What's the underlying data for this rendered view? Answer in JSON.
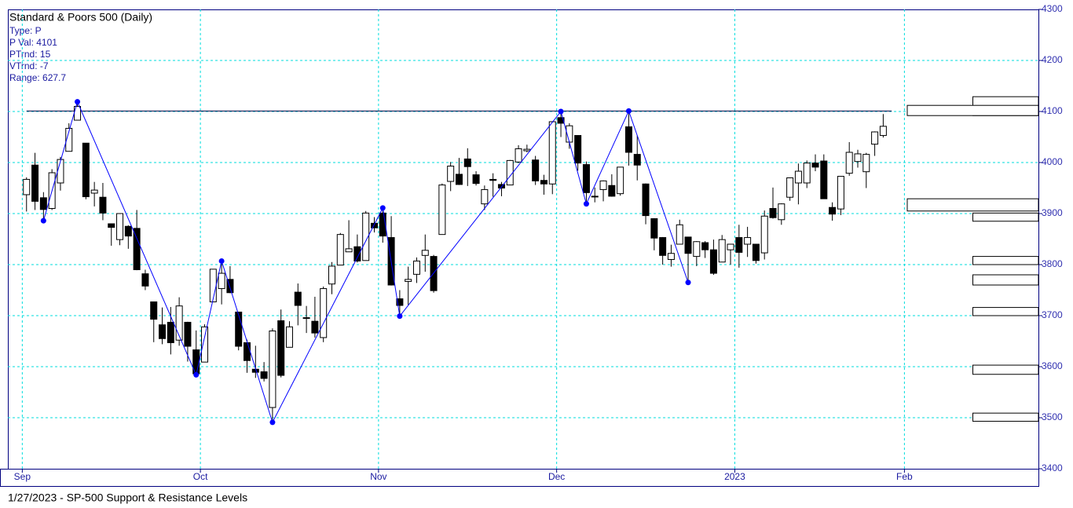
{
  "chart_data": {
    "type": "candlestick",
    "title": "Standard & Poors 500 (Daily)",
    "info": [
      "Type: P",
      {
        "value": 4101,
        "label": "P Val: 4101"
      },
      "PTrnd: 15",
      "VTrnd: -7",
      "Range: 627.7"
    ],
    "footer": "1/27/2023 - SP-500  Support & Resistance Levels",
    "x": [
      0,
      1,
      2,
      3,
      4,
      5,
      6,
      7,
      8,
      9,
      10,
      11,
      12,
      13,
      14,
      15,
      16,
      17,
      18,
      19,
      20,
      21,
      22,
      23,
      24,
      25,
      26,
      27,
      28,
      29,
      30,
      31,
      32,
      33,
      34,
      35,
      36,
      37,
      38,
      39,
      40,
      41,
      42,
      43,
      44,
      45,
      46,
      47,
      48,
      49,
      50,
      51,
      52,
      53,
      54,
      55,
      56,
      57,
      58,
      59,
      60,
      61,
      62,
      63,
      64,
      65,
      66,
      67,
      68,
      69,
      70,
      71,
      72,
      73,
      74,
      75,
      76,
      77,
      78,
      79,
      80,
      81,
      82,
      83,
      84,
      85,
      86,
      87,
      88,
      89,
      90,
      91,
      92,
      93,
      94,
      95,
      96,
      97,
      98,
      99,
      100,
      101
    ],
    "open": [
      3937,
      3995,
      3931,
      3910,
      3960,
      4022,
      4083,
      4038,
      3940,
      3932,
      3880,
      3849,
      3875,
      3871,
      3782,
      3727,
      3682,
      3687,
      3652,
      3687,
      3633,
      3609,
      3727,
      3753,
      3771,
      3707,
      3647,
      3595,
      3590,
      3520,
      3690,
      3638,
      3746,
      3696,
      3689,
      3657,
      3762,
      3799,
      3825,
      3835,
      3808,
      3881,
      3901,
      3853,
      3733,
      3767,
      3781,
      3818,
      3816,
      3859,
      3963,
      3977,
      4007,
      3976,
      3919,
      3967,
      3957,
      3956,
      4001,
      4023,
      4005,
      3965,
      3958,
      4088,
      4040,
      4053,
      3996,
      3933,
      3947,
      3955,
      3939,
      4070,
      4016,
      3958,
      3890,
      3853,
      3810,
      3840,
      3854,
      3816,
      3843,
      3829,
      3805,
      3829,
      3853,
      3840,
      3840,
      3823,
      3910,
      3888,
      3932,
      3960,
      3960,
      3999,
      4003,
      3912,
      3909,
      3979,
      4002,
      3982,
      4036,
      4053
    ],
    "high": [
      3971,
      4019,
      3942,
      3987,
      4011,
      4077,
      4119,
      4038,
      3962,
      3960,
      3880,
      3900,
      3877,
      3907,
      3790,
      3727,
      3716,
      3717,
      3736,
      3688,
      3671,
      3683,
      3791,
      3807,
      3797,
      3707,
      3653,
      3641,
      3609,
      3675,
      3712,
      3689,
      3763,
      3719,
      3737,
      3757,
      3805,
      3862,
      3887,
      3859,
      3905,
      3893,
      3911,
      3895,
      3750,
      3796,
      3814,
      3859,
      3819,
      3959,
      4001,
      4009,
      4028,
      3983,
      3955,
      3979,
      3962,
      4005,
      4034,
      4035,
      4013,
      3976,
      4081,
      4100,
      4077,
      4053,
      4002,
      3951,
      3965,
      3977,
      3991,
      4101,
      4053,
      3959,
      3891,
      3854,
      3839,
      3888,
      3854,
      3846,
      3846,
      3849,
      3858,
      3840,
      3878,
      3874,
      3840,
      3906,
      3951,
      3920,
      3970,
      3998,
      4004,
      4016,
      4016,
      3922,
      3973,
      4040,
      4025,
      4019,
      4061,
      4095
    ],
    "low": [
      3904,
      3907,
      3886,
      3907,
      3945,
      4022,
      4083,
      3928,
      3914,
      3887,
      3837,
      3838,
      3831,
      3789,
      3750,
      3648,
      3644,
      3624,
      3641,
      3610,
      3584,
      3609,
      3727,
      3722,
      3744,
      3632,
      3588,
      3578,
      3571,
      3491,
      3579,
      3638,
      3681,
      3666,
      3657,
      3648,
      3742,
      3799,
      3825,
      3804,
      3808,
      3863,
      3843,
      3759,
      3699,
      3721,
      3764,
      3786,
      3745,
      3859,
      3944,
      3956,
      3954,
      3955,
      3907,
      3933,
      3934,
      3956,
      3999,
      4020,
      3956,
      3937,
      3938,
      4050,
      4027,
      3984,
      3919,
      3922,
      3924,
      3933,
      3935,
      3994,
      3965,
      3879,
      3828,
      3800,
      3796,
      3840,
      3765,
      3797,
      3813,
      3780,
      3805,
      3800,
      3794,
      3815,
      3802,
      3810,
      3890,
      3878,
      3925,
      3918,
      3950,
      3983,
      3929,
      3886,
      3897,
      3974,
      3990,
      3950,
      4013,
      4049
    ],
    "close": [
      3967,
      3924,
      3908,
      3980,
      4006,
      4067,
      4110,
      3933,
      3946,
      3901,
      3873,
      3900,
      3856,
      3790,
      3758,
      3693,
      3655,
      3647,
      3719,
      3640,
      3586,
      3678,
      3791,
      3783,
      3745,
      3640,
      3612,
      3589,
      3577,
      3670,
      3583,
      3678,
      3720,
      3695,
      3666,
      3753,
      3797,
      3859,
      3831,
      3807,
      3901,
      3872,
      3856,
      3760,
      3720,
      3771,
      3807,
      3828,
      3749,
      3956,
      3993,
      3957,
      3992,
      3959,
      3947,
      3965,
      3950,
      4004,
      4027,
      4026,
      3964,
      3958,
      4080,
      4077,
      4072,
      3999,
      3941,
      3934,
      3964,
      3934,
      3991,
      4020,
      3995,
      3896,
      3852,
      3818,
      3822,
      3878,
      3822,
      3845,
      3829,
      3783,
      3849,
      3840,
      3824,
      3853,
      3808,
      3895,
      3892,
      3919,
      3970,
      3983,
      3999,
      3991,
      3929,
      3899,
      3973,
      4020,
      4017,
      4016,
      4060,
      4071
    ],
    "up_color": "#ffffff",
    "down_color": "#000000",
    "zigzag": {
      "color": "#0000ff",
      "x": [
        2,
        6,
        20,
        23,
        29,
        42,
        44,
        63,
        66,
        71,
        78
      ],
      "values": [
        3886,
        4119,
        3584,
        3807,
        3491,
        3911,
        3699,
        4100,
        3919,
        4101,
        3765
      ]
    },
    "levels": [
      {
        "low": 4092,
        "high": 4129,
        "strength": 1
      },
      {
        "low": 4092,
        "high": 4112,
        "strength": 2
      },
      {
        "low": 3905,
        "high": 3929,
        "strength": 2
      },
      {
        "low": 3885,
        "high": 3901,
        "strength": 1
      },
      {
        "low": 3800,
        "high": 3816,
        "strength": 1
      },
      {
        "low": 3760,
        "high": 3780,
        "strength": 1
      },
      {
        "low": 3700,
        "high": 3716,
        "strength": 1
      },
      {
        "low": 3585,
        "high": 3603,
        "strength": 1
      },
      {
        "low": 3493,
        "high": 3509,
        "strength": 1
      }
    ],
    "xlim": [
      -2.2,
      119.3
    ],
    "xticks": [
      {
        "value": -0.5,
        "label": "Sep"
      },
      {
        "value": 20.5,
        "label": "Oct"
      },
      {
        "value": 41.5,
        "label": "Nov"
      },
      {
        "value": 62.5,
        "label": "Dec"
      },
      {
        "value": 83.5,
        "label": "2023"
      },
      {
        "value": 103.5,
        "label": "Feb"
      }
    ],
    "ylim": [
      3400,
      4300
    ],
    "yticks": [
      3400,
      3500,
      3600,
      3700,
      3800,
      3900,
      4000,
      4100,
      4200,
      4300
    ],
    "grid": true
  }
}
